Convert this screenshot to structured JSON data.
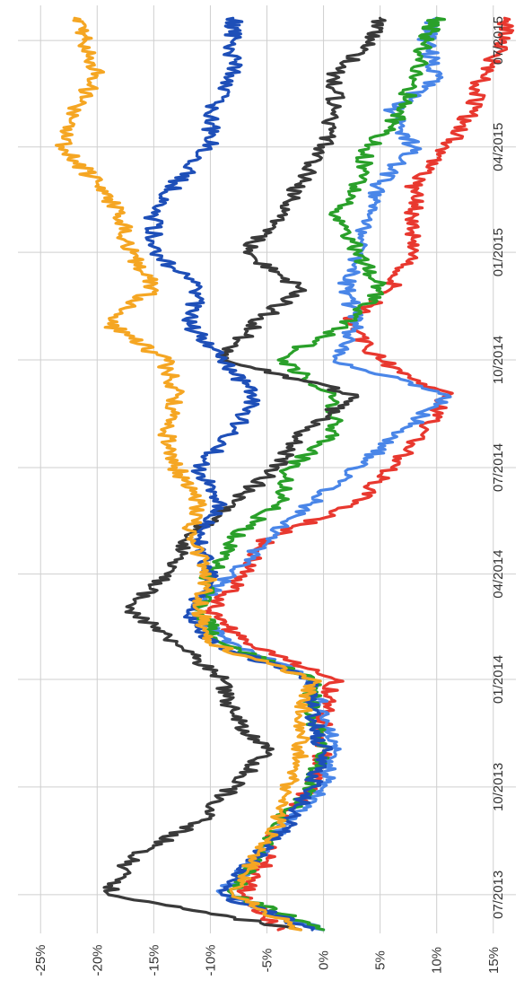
{
  "chart_data": {
    "type": "line",
    "orientation": "rotated-90-clockwise",
    "x_axis": {
      "type": "date",
      "min": "2013-06-01",
      "max": "2015-07-31",
      "ticks": [
        "07/2013",
        "10/2013",
        "01/2014",
        "04/2014",
        "07/2014",
        "10/2014",
        "01/2015",
        "04/2015",
        "07/2015"
      ],
      "tick_dates": [
        "2013-07-01",
        "2013-10-01",
        "2014-01-01",
        "2014-04-01",
        "2014-07-01",
        "2014-10-01",
        "2015-01-01",
        "2015-04-01",
        "2015-07-01"
      ]
    },
    "y_axis": {
      "unit": "%",
      "min": -27,
      "max": 17,
      "ticks": [
        -25,
        -20,
        -15,
        -10,
        -5,
        0,
        5,
        10,
        15
      ],
      "tick_labels": [
        "-25%",
        "-20%",
        "-15%",
        "-10%",
        "-5%",
        "0%",
        "5%",
        "10%",
        "15%"
      ]
    },
    "grid": true,
    "legend": "none",
    "title": "",
    "xlabel": "",
    "ylabel": "",
    "series": [
      {
        "color": "#e8382f",
        "x": [
          "2013-06-01",
          "2013-07-01",
          "2013-08-01",
          "2013-09-01",
          "2013-10-01",
          "2013-11-01",
          "2013-12-01",
          "2014-01-01",
          "2014-02-01",
          "2014-03-01",
          "2014-04-01",
          "2014-05-01",
          "2014-06-01",
          "2014-07-01",
          "2014-08-01",
          "2014-09-01",
          "2014-10-01",
          "2014-11-01",
          "2014-12-01",
          "2015-01-01",
          "2015-02-01",
          "2015-03-01",
          "2015-04-01",
          "2015-05-01",
          "2015-06-01",
          "2015-07-01",
          "2015-07-20"
        ],
        "y": [
          -4,
          -7,
          -5,
          -4,
          -1,
          0,
          0,
          1,
          -7,
          -10,
          -7,
          -5,
          3,
          6,
          9,
          11,
          5,
          2,
          6,
          8,
          8,
          8,
          11,
          13,
          14,
          16,
          16
        ]
      },
      {
        "color": "#4a86e8",
        "x": [
          "2013-06-01",
          "2013-07-01",
          "2013-08-01",
          "2013-09-01",
          "2013-10-01",
          "2013-11-01",
          "2013-12-01",
          "2014-01-01",
          "2014-02-01",
          "2014-03-01",
          "2014-04-01",
          "2014-05-01",
          "2014-06-01",
          "2014-07-01",
          "2014-08-01",
          "2014-09-01",
          "2014-10-01",
          "2014-11-01",
          "2014-12-01",
          "2015-01-01",
          "2015-02-01",
          "2015-03-01",
          "2015-04-01",
          "2015-05-01",
          "2015-06-01",
          "2015-07-01",
          "2015-07-20"
        ],
        "y": [
          0,
          -9,
          -6,
          -3,
          0,
          1,
          0,
          -1,
          -8,
          -12,
          -8,
          -5,
          -1,
          3,
          7,
          11,
          1,
          3,
          2,
          3,
          4,
          5,
          8,
          6,
          10,
          9,
          10
        ]
      },
      {
        "color": "#2aa02a",
        "x": [
          "2013-06-01",
          "2013-07-01",
          "2013-08-01",
          "2013-09-01",
          "2013-10-01",
          "2013-11-01",
          "2013-12-01",
          "2014-01-01",
          "2014-02-01",
          "2014-03-01",
          "2014-04-01",
          "2014-05-01",
          "2014-06-01",
          "2014-07-01",
          "2014-08-01",
          "2014-09-01",
          "2014-10-01",
          "2014-11-01",
          "2014-12-01",
          "2015-01-01",
          "2015-02-01",
          "2015-03-01",
          "2015-04-01",
          "2015-05-01",
          "2015-06-01",
          "2015-07-01",
          "2015-07-20"
        ],
        "y": [
          0,
          -8,
          -6,
          -4,
          -1,
          0,
          -1,
          -1,
          -9,
          -11,
          -10,
          -8,
          -4,
          -3,
          1,
          1,
          -4,
          2,
          5,
          3,
          1,
          3,
          4,
          7,
          8,
          9,
          10
        ]
      },
      {
        "color": "#3a3a3a",
        "x": [
          "2013-06-01",
          "2013-07-01",
          "2013-08-01",
          "2013-09-01",
          "2013-10-01",
          "2013-11-01",
          "2013-12-01",
          "2014-01-01",
          "2014-02-01",
          "2014-03-01",
          "2014-04-01",
          "2014-05-01",
          "2014-06-01",
          "2014-07-01",
          "2014-08-01",
          "2014-09-01",
          "2014-10-01",
          "2014-11-01",
          "2014-12-01",
          "2015-01-01",
          "2015-02-01",
          "2015-03-01",
          "2015-04-01",
          "2015-05-01",
          "2015-06-01",
          "2015-07-01",
          "2015-07-20"
        ],
        "y": [
          -2,
          -19,
          -17,
          -11,
          -8,
          -5,
          -8,
          -9,
          -13,
          -17,
          -14,
          -12,
          -8,
          -4,
          -2,
          3,
          -9,
          -6,
          -2,
          -7,
          -4,
          -2,
          0,
          1,
          1,
          4,
          5
        ]
      },
      {
        "color": "#1e4fb8",
        "x": [
          "2013-06-01",
          "2013-07-01",
          "2013-08-01",
          "2013-09-01",
          "2013-10-01",
          "2013-11-01",
          "2013-12-01",
          "2014-01-01",
          "2014-02-01",
          "2014-03-01",
          "2014-04-01",
          "2014-05-01",
          "2014-06-01",
          "2014-07-01",
          "2014-08-01",
          "2014-09-01",
          "2014-10-01",
          "2014-11-01",
          "2014-12-01",
          "2015-01-01",
          "2015-02-01",
          "2015-03-01",
          "2015-04-01",
          "2015-05-01",
          "2015-06-01",
          "2015-07-01",
          "2015-07-20"
        ],
        "y": [
          -1,
          -9,
          -6,
          -3,
          -1,
          0,
          -1,
          -1,
          -10,
          -12,
          -10,
          -11,
          -9,
          -11,
          -8,
          -6,
          -9,
          -12,
          -11,
          -15,
          -15,
          -13,
          -10,
          -10,
          -8,
          -8,
          -8
        ]
      },
      {
        "color": "#f5a623",
        "x": [
          "2013-06-01",
          "2013-07-01",
          "2013-08-01",
          "2013-09-01",
          "2013-10-01",
          "2013-11-01",
          "2013-12-01",
          "2014-01-01",
          "2014-02-01",
          "2014-03-01",
          "2014-04-01",
          "2014-05-01",
          "2014-06-01",
          "2014-07-01",
          "2014-08-01",
          "2014-09-01",
          "2014-10-01",
          "2014-11-01",
          "2014-12-01",
          "2015-01-01",
          "2015-02-01",
          "2015-03-01",
          "2015-04-01",
          "2015-05-01",
          "2015-06-01",
          "2015-07-01",
          "2015-07-20"
        ],
        "y": [
          -2,
          -8,
          -6,
          -4,
          -3,
          -2,
          -2,
          -1,
          -10,
          -11,
          -10,
          -12,
          -11,
          -13,
          -14,
          -13,
          -14,
          -19,
          -15,
          -17,
          -18,
          -20,
          -23,
          -22,
          -20,
          -21,
          -22
        ]
      }
    ]
  }
}
